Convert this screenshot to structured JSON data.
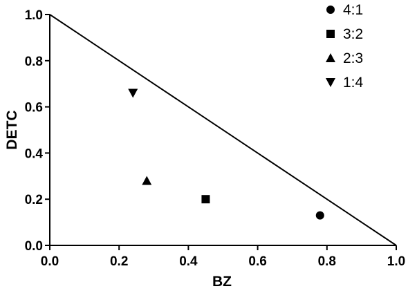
{
  "chart_data": {
    "type": "scatter",
    "xlabel": "BZ",
    "ylabel": "DETC",
    "xlim": [
      0,
      1
    ],
    "ylim": [
      0,
      1
    ],
    "x_ticks": [
      "0.0",
      "0.2",
      "0.4",
      "0.6",
      "0.8",
      "1.0"
    ],
    "y_ticks": [
      "0.0",
      "0.2",
      "0.4",
      "0.6",
      "0.8",
      "1.0"
    ],
    "grid": false,
    "legend_position": "top-right",
    "boundary_line": {
      "from": [
        0,
        1
      ],
      "to": [
        1,
        0
      ]
    },
    "series": [
      {
        "name": "4:1",
        "marker": "circle",
        "points": [
          {
            "x": 0.78,
            "y": 0.13
          }
        ]
      },
      {
        "name": "3:2",
        "marker": "square",
        "points": [
          {
            "x": 0.45,
            "y": 0.2
          }
        ]
      },
      {
        "name": "2:3",
        "marker": "triangle-up",
        "points": [
          {
            "x": 0.28,
            "y": 0.28
          }
        ]
      },
      {
        "name": "1:4",
        "marker": "triangle-down",
        "points": [
          {
            "x": 0.24,
            "y": 0.66
          }
        ]
      }
    ],
    "colors": {
      "marker": "#000000",
      "axis": "#000000"
    }
  }
}
